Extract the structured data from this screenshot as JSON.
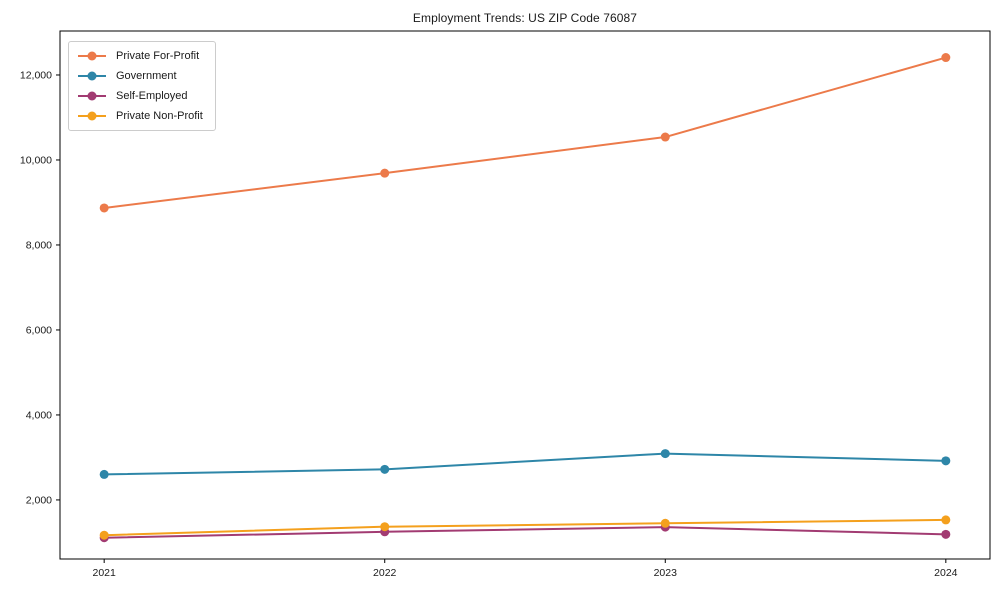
{
  "window": {
    "title": "Employment Trends: US ZIP Code 76087"
  },
  "chart_data": {
    "type": "line",
    "title": "Employment Trends: US ZIP Code 76087",
    "categories": [
      "2021",
      "2022",
      "2023",
      "2024"
    ],
    "series": [
      {
        "name": "Private For-Profit",
        "color": "#ec7a4a",
        "values": [
          8870,
          9690,
          10540,
          12410
        ]
      },
      {
        "name": "Government",
        "color": "#2e86a8",
        "values": [
          2600,
          2720,
          3090,
          2920
        ]
      },
      {
        "name": "Self-Employed",
        "color": "#a23b72",
        "values": [
          1110,
          1250,
          1360,
          1190
        ]
      },
      {
        "name": "Private Non-Profit",
        "color": "#f4a01d",
        "values": [
          1170,
          1370,
          1450,
          1530
        ]
      }
    ],
    "xlabel": "",
    "ylabel": "",
    "ylim": [
      610,
      13035
    ],
    "yticks": [
      2000,
      4000,
      6000,
      8000,
      10000,
      12000
    ],
    "ytick_labels": [
      "2,000",
      "4,000",
      "6,000",
      "8,000",
      "10,000",
      "12,000"
    ],
    "legend_position": "upper left",
    "grid": false,
    "marker": "circle",
    "axis_color": "#000000",
    "text_color": "#1a1a1a",
    "background": "#ffffff"
  }
}
